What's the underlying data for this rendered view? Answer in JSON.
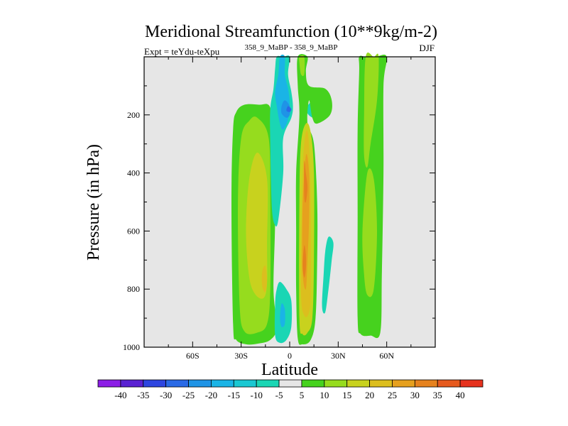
{
  "chart_data": {
    "type": "contour",
    "title": "Meridional Streamfunction (10**9kg/m-2)",
    "left_string": "Expt = teYdu-teXpu",
    "center_string": "358_9_MaBP - 358_9_MaBP",
    "right_string": "DJF",
    "xlabel": "Latitude",
    "ylabel": "Pressure (in hPa)",
    "xlim": [
      -90,
      90
    ],
    "ylim": [
      1000,
      0
    ],
    "x_ticks": [
      {
        "value": -60,
        "label": "60S"
      },
      {
        "value": -30,
        "label": "30S"
      },
      {
        "value": 0,
        "label": "0"
      },
      {
        "value": 30,
        "label": "30N"
      },
      {
        "value": 60,
        "label": "60N"
      }
    ],
    "y_ticks": [
      {
        "value": 200,
        "label": "200"
      },
      {
        "value": 400,
        "label": "400"
      },
      {
        "value": 600,
        "label": "600"
      },
      {
        "value": 800,
        "label": "800"
      },
      {
        "value": 1000,
        "label": "1000"
      }
    ],
    "background_color": "#e6e6e6",
    "colorbar": {
      "colors": [
        "#8c1ee6",
        "#5a22d2",
        "#2e46e0",
        "#2a6ae6",
        "#1f94e6",
        "#1ab4e6",
        "#1ac8d2",
        "#1ad6b4",
        "#e6e6e6",
        "#46d21e",
        "#96dc1e",
        "#c8d21e",
        "#dcbe1e",
        "#e6a01e",
        "#e6821e",
        "#e65a1e",
        "#e6321e"
      ],
      "labels": [
        "-40",
        "-35",
        "-30",
        "-25",
        "-20",
        "-15",
        "-10",
        "-5",
        "5",
        "10",
        "15",
        "20",
        "25",
        "30",
        "35",
        "40"
      ]
    },
    "regions": [
      {
        "name": "sh-positive-cell",
        "level": 5,
        "peak": 23,
        "color": "#46d21e",
        "outline": [
          [
            -19,
            165
          ],
          [
            -12,
            175
          ],
          [
            -10,
            300
          ],
          [
            -9,
            550
          ],
          [
            -10,
            800
          ],
          [
            -8,
            930
          ],
          [
            -12,
            975
          ],
          [
            -20,
            988
          ],
          [
            -27,
            990
          ],
          [
            -33,
            975
          ],
          [
            -35,
            920
          ],
          [
            -36,
            500
          ],
          [
            -35,
            250
          ],
          [
            -33,
            190
          ],
          [
            -28,
            165
          ]
        ]
      },
      {
        "name": "sh-positive-cell-inner",
        "level": 10,
        "peak": 23,
        "color": "#96dc1e",
        "outline": [
          [
            -20,
            210
          ],
          [
            -13,
            280
          ],
          [
            -12,
            500
          ],
          [
            -12,
            800
          ],
          [
            -14,
            920
          ],
          [
            -20,
            950
          ],
          [
            -28,
            945
          ],
          [
            -31,
            850
          ],
          [
            -32,
            500
          ],
          [
            -30,
            280
          ],
          [
            -25,
            220
          ]
        ]
      },
      {
        "name": "sh-positive-cell-core",
        "level": 15,
        "peak": 23,
        "color": "#c8d21e",
        "outline": [
          [
            -20,
            330
          ],
          [
            -14,
            420
          ],
          [
            -14,
            650
          ],
          [
            -14,
            780
          ],
          [
            -16,
            830
          ],
          [
            -21,
            820
          ],
          [
            -25,
            760
          ],
          [
            -27,
            600
          ],
          [
            -25,
            420
          ]
        ]
      },
      {
        "name": "sh-positive-cell-max",
        "level": 20,
        "peak": 23,
        "color": "#dcbe1e",
        "outline": [
          [
            -15,
            720
          ],
          [
            -14,
            770
          ],
          [
            -15,
            810
          ],
          [
            -17,
            790
          ],
          [
            -17,
            740
          ]
        ]
      },
      {
        "name": "upper-negative-cell",
        "level": -5,
        "peak": -20,
        "color": "#1ad6b4",
        "outline": [
          [
            -8,
            0
          ],
          [
            -4,
            0
          ],
          [
            0,
            0
          ],
          [
            -1,
            60
          ],
          [
            1,
            120
          ],
          [
            2,
            170
          ],
          [
            1,
            210
          ],
          [
            -4,
            280
          ],
          [
            -4,
            400
          ],
          [
            -7,
            560
          ],
          [
            -9,
            580
          ],
          [
            -11,
            520
          ],
          [
            -12,
            300
          ],
          [
            -12,
            180
          ],
          [
            -10,
            110
          ],
          [
            -9,
            40
          ]
        ]
      },
      {
        "name": "upper-negative-cell-inner",
        "level": -10,
        "peak": -20,
        "color": "#1ab4e6",
        "outline": [
          [
            -6,
            0
          ],
          [
            -3,
            0
          ],
          [
            -3,
            60
          ],
          [
            -1,
            110
          ],
          [
            0,
            160
          ],
          [
            -1,
            215
          ],
          [
            -4,
            250
          ],
          [
            -6,
            230
          ],
          [
            -8,
            170
          ],
          [
            -9,
            120
          ],
          [
            -7,
            60
          ]
        ]
      },
      {
        "name": "upper-negative-cell-core",
        "level": -15,
        "peak": -20,
        "color": "#1f94e6",
        "outline": [
          [
            -3,
            150
          ],
          [
            0,
            170
          ],
          [
            0,
            200
          ],
          [
            -2,
            210
          ],
          [
            -5,
            195
          ],
          [
            -5,
            170
          ]
        ]
      },
      {
        "name": "upper-negative-cell-max",
        "level": -20,
        "peak": -20,
        "color": "#2a6ae6",
        "outline": [
          [
            -1,
            170
          ],
          [
            1,
            180
          ],
          [
            0,
            190
          ],
          [
            -2,
            185
          ]
        ]
      },
      {
        "name": "lower-negative-cell",
        "level": -5,
        "peak": -15,
        "color": "#1ad6b4",
        "outline": [
          [
            -6,
            775
          ],
          [
            -2,
            800
          ],
          [
            1,
            840
          ],
          [
            1,
            930
          ],
          [
            -2,
            975
          ],
          [
            -6,
            985
          ],
          [
            -9,
            960
          ],
          [
            -9,
            850
          ],
          [
            -8,
            800
          ]
        ]
      },
      {
        "name": "lower-negative-cell-core",
        "level": -10,
        "peak": -15,
        "color": "#1ab4e6",
        "outline": [
          [
            -5,
            850
          ],
          [
            -3,
            870
          ],
          [
            -3,
            920
          ],
          [
            -5,
            930
          ],
          [
            -6,
            900
          ]
        ]
      },
      {
        "name": "small-negative-blob",
        "level": -5,
        "peak": -5,
        "color": "#1ad6b4",
        "outline": [
          [
            11,
            170
          ],
          [
            14,
            155
          ],
          [
            18,
            165
          ],
          [
            19,
            190
          ],
          [
            15,
            210
          ],
          [
            11,
            195
          ]
        ]
      },
      {
        "name": "trailing-negative-blob",
        "level": -5,
        "peak": -5,
        "color": "#1ad6b4",
        "outline": [
          [
            24,
            620
          ],
          [
            27,
            640
          ],
          [
            26,
            700
          ],
          [
            24,
            800
          ],
          [
            22,
            880
          ],
          [
            20,
            860
          ],
          [
            21,
            750
          ],
          [
            22,
            670
          ]
        ]
      },
      {
        "name": "equatorial-positive-cell",
        "level": 5,
        "peak": 32,
        "color": "#46d21e",
        "outline": [
          [
            5,
            0
          ],
          [
            11,
            0
          ],
          [
            10,
            50
          ],
          [
            12,
            100
          ],
          [
            22,
            110
          ],
          [
            26,
            150
          ],
          [
            25,
            200
          ],
          [
            17,
            230
          ],
          [
            14,
            210
          ],
          [
            12,
            150
          ],
          [
            11,
            230
          ],
          [
            15,
            300
          ],
          [
            17,
            500
          ],
          [
            17,
            700
          ],
          [
            16,
            900
          ],
          [
            13,
            975
          ],
          [
            8,
            990
          ],
          [
            5,
            970
          ],
          [
            4,
            800
          ],
          [
            4,
            600
          ],
          [
            4,
            400
          ],
          [
            6,
            200
          ],
          [
            5,
            100
          ]
        ]
      },
      {
        "name": "equatorial-positive-cell-inner",
        "level": 10,
        "peak": 32,
        "color": "#96dc1e",
        "outline": [
          [
            6,
            0
          ],
          [
            9,
            0
          ],
          [
            9,
            60
          ],
          [
            7,
            60
          ],
          [
            6,
            20
          ]
        ]
      },
      {
        "name": "equatorial-positive-cell-mid",
        "level": 15,
        "peak": 32,
        "color": "#c8d21e",
        "outline": [
          [
            10,
            230
          ],
          [
            13,
            260
          ],
          [
            15,
            400
          ],
          [
            15,
            700
          ],
          [
            14,
            900
          ],
          [
            11,
            950
          ],
          [
            8,
            955
          ],
          [
            6,
            900
          ],
          [
            6,
            500
          ],
          [
            7,
            300
          ]
        ]
      },
      {
        "name": "equatorial-positive-cell-core",
        "level": 20,
        "peak": 32,
        "color": "#dcbe1e",
        "outline": [
          [
            10,
            260
          ],
          [
            12,
            300
          ],
          [
            13,
            500
          ],
          [
            13,
            800
          ],
          [
            12,
            880
          ],
          [
            9,
            890
          ],
          [
            7,
            800
          ],
          [
            8,
            400
          ]
        ]
      },
      {
        "name": "equatorial-positive-cell-core2",
        "level": 25,
        "peak": 32,
        "color": "#e6a01e",
        "outline": [
          [
            10,
            340
          ],
          [
            12,
            400
          ],
          [
            12,
            560
          ],
          [
            11,
            700
          ],
          [
            10,
            800
          ],
          [
            8,
            740
          ],
          [
            8,
            520
          ]
        ]
      },
      {
        "name": "equatorial-positive-cell-max",
        "level": 30,
        "peak": 32,
        "color": "#e6821e",
        "outline": [
          [
            9,
            360
          ],
          [
            10,
            400
          ],
          [
            11,
            450
          ],
          [
            10,
            500
          ],
          [
            9,
            480
          ]
        ]
      },
      {
        "name": "equatorial-positive-cell-max2",
        "level": 30,
        "peak": 32,
        "color": "#e6821e",
        "outline": [
          [
            9,
            650
          ],
          [
            10,
            680
          ],
          [
            10,
            730
          ],
          [
            9,
            760
          ],
          [
            8,
            720
          ]
        ]
      },
      {
        "name": "nh-positive-cell",
        "level": 5,
        "peak": 12,
        "color": "#46d21e",
        "outline": [
          [
            43,
            0
          ],
          [
            47,
            0
          ],
          [
            53,
            0
          ],
          [
            60,
            0
          ],
          [
            58,
            100
          ],
          [
            58,
            400
          ],
          [
            57,
            750
          ],
          [
            56,
            950
          ],
          [
            50,
            960
          ],
          [
            44,
            955
          ],
          [
            42,
            900
          ],
          [
            42,
            550
          ],
          [
            42,
            250
          ],
          [
            43,
            50
          ]
        ]
      },
      {
        "name": "nh-positive-cell-inner",
        "level": 10,
        "peak": 12,
        "color": "#96dc1e",
        "outline": [
          [
            47,
            0
          ],
          [
            52,
            0
          ],
          [
            55,
            0
          ],
          [
            54,
            150
          ],
          [
            50,
            300
          ],
          [
            48,
            380
          ],
          [
            46,
            340
          ],
          [
            46,
            200
          ]
        ]
      },
      {
        "name": "nh-positive-cell-inner2",
        "level": 10,
        "peak": 12,
        "color": "#96dc1e",
        "outline": [
          [
            48,
            400
          ],
          [
            52,
            420
          ],
          [
            54,
            600
          ],
          [
            52,
            800
          ],
          [
            48,
            820
          ],
          [
            46,
            750
          ],
          [
            45,
            600
          ]
        ]
      }
    ]
  }
}
